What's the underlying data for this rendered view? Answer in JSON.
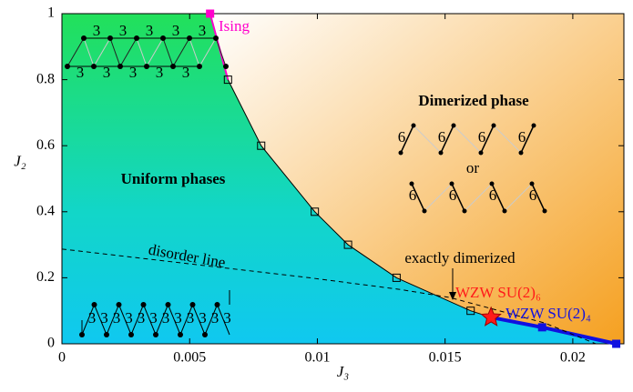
{
  "chart_data": {
    "type": "line",
    "xlabel": "J₃",
    "ylabel": "J₂",
    "xlim": [
      0,
      0.022
    ],
    "ylim": [
      0,
      1
    ],
    "xticks": [
      0,
      0.005,
      0.01,
      0.015,
      0.02
    ],
    "yticks": [
      0,
      0.2,
      0.4,
      0.6,
      0.8,
      1
    ],
    "series": [
      {
        "color": "#000000",
        "x": [
          0.0065,
          0.0078,
          0.0099,
          0.0112,
          0.0131,
          0.016
        ],
        "values": [
          0.8,
          0.6,
          0.4,
          0.3,
          0.2,
          0.1
        ]
      },
      {
        "color": "#ff00cc",
        "x": [
          0.0058
        ],
        "values": [
          1
        ]
      },
      {
        "color": "#ff1a1a",
        "x": [
          0.0168
        ],
        "values": [
          0.08
        ]
      },
      {
        "color": "#1010e0",
        "x": [
          0.0188,
          0.0217
        ],
        "values": [
          0.05,
          0
        ]
      },
      {
        "color": "#000000",
        "dashed": true,
        "x": [
          0,
          0.0097,
          0.0132,
          0.0152,
          0.0189,
          0.0209
        ],
        "values": [
          0.287,
          0.2,
          0.165,
          0.14,
          0.063,
          0
        ]
      }
    ],
    "annotations": [
      {
        "text": "Ising",
        "color": "#ff00cc"
      },
      {
        "text": "Dimerized phase",
        "color": "#000000"
      },
      {
        "text": "or",
        "color": "#000000"
      },
      {
        "text": "Uniform phases",
        "color": "#000000"
      },
      {
        "text": "disorder line",
        "color": "#000000"
      },
      {
        "text": "exactly dimerized",
        "color": "#000000"
      },
      {
        "text": "WZW SU(2)₆",
        "color": "#ff1a1a"
      },
      {
        "text": "WZW SU(2)₄",
        "color": "#1010e0"
      }
    ],
    "inset_bond_labels": {
      "uniform": "3",
      "dimerized": "6"
    }
  }
}
